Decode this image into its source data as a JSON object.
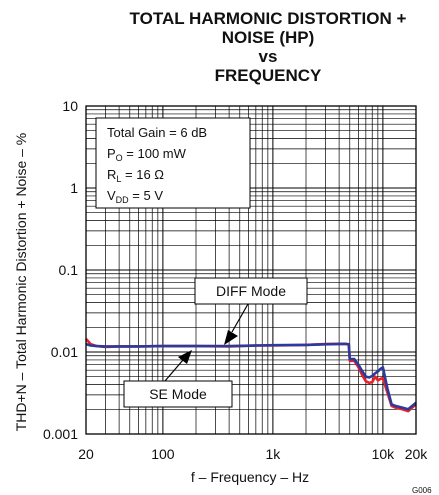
{
  "chart_data": {
    "type": "line",
    "title_lines": [
      "TOTAL HARMONIC DISTORTION +",
      "NOISE (HP)",
      "vs",
      "FREQUENCY"
    ],
    "xlabel": "f – Frequency – Hz",
    "ylabel": "THD+N – Total Harmonic Distortion + Noise – %",
    "x_scale": "log",
    "y_scale": "log",
    "xlim": [
      20,
      20000
    ],
    "ylim": [
      0.001,
      10
    ],
    "x_ticks": [
      {
        "value": 20,
        "label": "20"
      },
      {
        "value": 100,
        "label": "100"
      },
      {
        "value": 1000,
        "label": "1k"
      },
      {
        "value": 10000,
        "label": "10k"
      },
      {
        "value": 20000,
        "label": "20k"
      }
    ],
    "y_ticks": [
      {
        "value": 10,
        "label": "10"
      },
      {
        "value": 1,
        "label": "1"
      },
      {
        "value": 0.1,
        "label": "0.1"
      },
      {
        "value": 0.01,
        "label": "0.01"
      },
      {
        "value": 0.001,
        "label": "0.001"
      }
    ],
    "grid": true,
    "conditions": {
      "gain": {
        "text": "Total Gain = 6 dB"
      },
      "po": {
        "main": "P",
        "sub": "O",
        "rest": " = 100 mW"
      },
      "rl": {
        "main": "R",
        "sub": "L",
        "rest": " = 16 Ω"
      },
      "vdd": {
        "main": "V",
        "sub": "DD",
        "rest": " = 5 V"
      }
    },
    "series": [
      {
        "name": "SE Mode",
        "color": "#e8202a",
        "x": [
          20,
          22,
          25,
          30,
          40,
          60,
          100,
          200,
          400,
          700,
          1000,
          2000,
          3000,
          4500,
          4900,
          5000,
          5500,
          6000,
          6500,
          7000,
          7500,
          8000,
          8500,
          9000,
          9500,
          10000,
          11000,
          12000,
          13000,
          15000,
          17000,
          20000
        ],
        "y": [
          0.0145,
          0.0125,
          0.0118,
          0.0115,
          0.0117,
          0.0117,
          0.0118,
          0.0118,
          0.0117,
          0.012,
          0.012,
          0.0122,
          0.0125,
          0.0126,
          0.0124,
          0.0078,
          0.0078,
          0.0065,
          0.0052,
          0.0044,
          0.0042,
          0.0043,
          0.005,
          0.0045,
          0.0047,
          0.0048,
          0.0032,
          0.0022,
          0.0021,
          0.002,
          0.0019,
          0.0023
        ]
      },
      {
        "name": "DIFF Mode",
        "color": "#2b3a9b",
        "x": [
          20,
          22,
          25,
          30,
          40,
          60,
          100,
          200,
          400,
          700,
          1000,
          2000,
          3000,
          4500,
          4900,
          5000,
          5500,
          6000,
          6500,
          7000,
          7500,
          8000,
          8500,
          9000,
          9500,
          10000,
          11000,
          12000,
          13000,
          15000,
          17000,
          20000
        ],
        "y": [
          0.0125,
          0.012,
          0.0118,
          0.0117,
          0.0117,
          0.0117,
          0.0118,
          0.0118,
          0.0118,
          0.012,
          0.0121,
          0.0122,
          0.0124,
          0.0126,
          0.0124,
          0.0082,
          0.0082,
          0.007,
          0.0058,
          0.005,
          0.0049,
          0.0051,
          0.0055,
          0.0058,
          0.0062,
          0.0065,
          0.0036,
          0.0023,
          0.0022,
          0.0021,
          0.002,
          0.0024
        ]
      }
    ],
    "annotations": [
      {
        "text": "DIFF Mode"
      },
      {
        "text": "SE Mode"
      }
    ],
    "figure_code": "G006"
  }
}
